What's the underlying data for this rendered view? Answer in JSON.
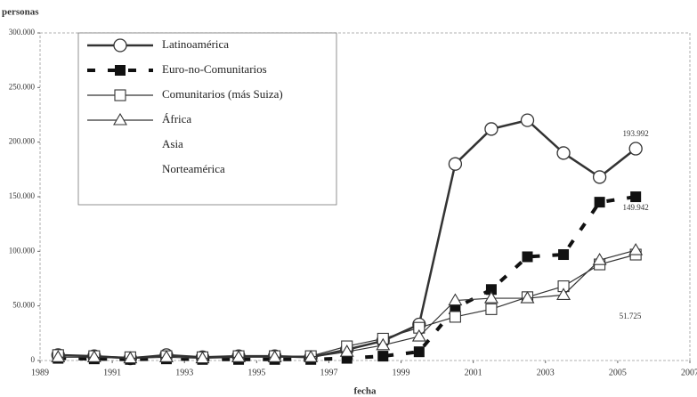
{
  "chart_data": {
    "type": "line",
    "y_label": "personas",
    "x_label": "fecha",
    "xlim": [
      1989,
      2007
    ],
    "xticks": [
      1989,
      1991,
      1993,
      1995,
      1997,
      1999,
      2001,
      2003,
      2005,
      2007
    ],
    "ylim": [
      0,
      300000
    ],
    "yticks": [
      0,
      {
        "value": 50000,
        "label": "50.000"
      },
      {
        "value": 100000,
        "label": "100.000"
      },
      {
        "value": 150000,
        "label": "150.000"
      },
      {
        "value": 200000,
        "label": "200.000"
      },
      {
        "value": 250000,
        "label": "250.000"
      },
      {
        "value": 300000,
        "label": "300.000"
      }
    ],
    "x": [
      1989.5,
      1990.5,
      1991.5,
      1992.5,
      1993.5,
      1994.5,
      1995.5,
      1996.5,
      1997.5,
      1998.5,
      1999.5,
      2000.5,
      2001.5,
      2002.5,
      2003.5,
      2004.5,
      2005.5
    ],
    "series": [
      {
        "name": "Latinoamérica",
        "color": "#333",
        "marker": "circle",
        "width": 2.5,
        "dash": "none",
        "values": [
          5000,
          4000,
          2000,
          5000,
          3000,
          4000,
          4000,
          3000,
          10000,
          18000,
          33000,
          180000,
          212000,
          220000,
          190000,
          168000,
          193992
        ],
        "value_labels": [
          null,
          null,
          null,
          null,
          null,
          null,
          null,
          null,
          null,
          null,
          null,
          null,
          null,
          null,
          null,
          null,
          "193.992"
        ]
      },
      {
        "name": "Euro-no-Comunitarios",
        "color": "#111",
        "marker": "filled-square",
        "width": 4,
        "dash": "9 14",
        "values": [
          2000,
          1500,
          1000,
          1500,
          1000,
          1000,
          1000,
          1000,
          2000,
          4000,
          8000,
          48000,
          65000,
          95000,
          97000,
          145000,
          149942
        ],
        "value_labels": [
          null,
          null,
          null,
          null,
          null,
          null,
          null,
          null,
          null,
          null,
          null,
          null,
          null,
          null,
          null,
          null,
          "149.942"
        ]
      },
      {
        "name": "Comunitarios (más Suiza)",
        "color": "#333",
        "marker": "square",
        "width": 1.2,
        "dash": "none",
        "values": [
          5000,
          4000,
          3000,
          4000,
          3000,
          4000,
          4000,
          4000,
          13000,
          20000,
          30000,
          40000,
          47000,
          58000,
          68000,
          88000,
          97000
        ]
      },
      {
        "name": "África",
        "color": "#333",
        "marker": "triangle",
        "width": 1.2,
        "dash": "none",
        "values": [
          3000,
          3000,
          2000,
          3000,
          2000,
          3000,
          3000,
          3000,
          8000,
          14000,
          22000,
          55000,
          57000,
          57000,
          60000,
          92000,
          101000
        ]
      }
    ],
    "legend_only": [
      "Asia",
      "Norteamérica"
    ],
    "annotation": "51.725"
  }
}
